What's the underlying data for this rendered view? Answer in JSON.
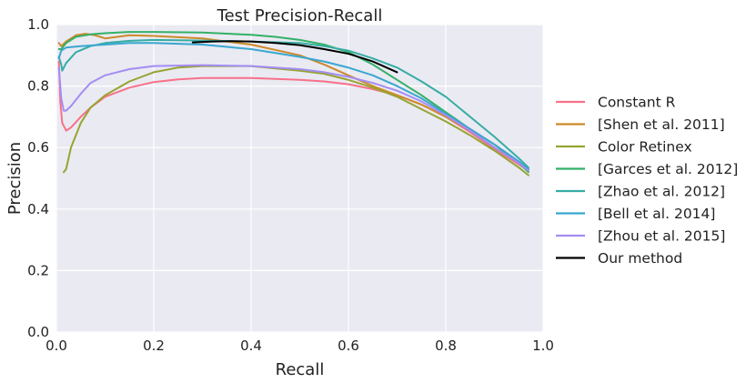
{
  "chart_data": {
    "type": "line",
    "title": "Test Precision-Recall",
    "xlabel": "Recall",
    "ylabel": "Precision",
    "xlim": [
      0.0,
      1.0
    ],
    "ylim": [
      0.0,
      1.0
    ],
    "xticks": [
      0.0,
      0.2,
      0.4,
      0.6,
      0.8,
      1.0
    ],
    "yticks": [
      0.0,
      0.2,
      0.4,
      0.6,
      0.8,
      1.0
    ],
    "tick_format_decimals": 1,
    "grid": true,
    "legend_position": "outside-right",
    "background_color": "#eaeaf2",
    "grid_color": "#ffffff",
    "series": [
      {
        "name": "Constant R",
        "color": "#f77189",
        "points": [
          [
            0.005,
            0.88
          ],
          [
            0.008,
            0.75
          ],
          [
            0.012,
            0.68
          ],
          [
            0.02,
            0.655
          ],
          [
            0.03,
            0.665
          ],
          [
            0.05,
            0.7
          ],
          [
            0.07,
            0.73
          ],
          [
            0.1,
            0.765
          ],
          [
            0.15,
            0.795
          ],
          [
            0.2,
            0.813
          ],
          [
            0.25,
            0.822
          ],
          [
            0.3,
            0.826
          ],
          [
            0.4,
            0.826
          ],
          [
            0.5,
            0.82
          ],
          [
            0.55,
            0.815
          ],
          [
            0.6,
            0.806
          ],
          [
            0.65,
            0.79
          ],
          [
            0.7,
            0.77
          ],
          [
            0.75,
            0.74
          ],
          [
            0.8,
            0.7
          ],
          [
            0.85,
            0.65
          ],
          [
            0.9,
            0.595
          ],
          [
            0.95,
            0.545
          ],
          [
            0.97,
            0.525
          ]
        ]
      },
      {
        "name": "[Shen et al. 2011]",
        "color": "#cc8a2a",
        "points": [
          [
            0.005,
            0.94
          ],
          [
            0.01,
            0.93
          ],
          [
            0.02,
            0.945
          ],
          [
            0.04,
            0.965
          ],
          [
            0.06,
            0.97
          ],
          [
            0.08,
            0.965
          ],
          [
            0.1,
            0.955
          ],
          [
            0.15,
            0.965
          ],
          [
            0.2,
            0.963
          ],
          [
            0.3,
            0.955
          ],
          [
            0.4,
            0.935
          ],
          [
            0.5,
            0.9
          ],
          [
            0.55,
            0.87
          ],
          [
            0.6,
            0.835
          ],
          [
            0.65,
            0.8
          ],
          [
            0.7,
            0.77
          ],
          [
            0.75,
            0.74
          ],
          [
            0.8,
            0.7
          ],
          [
            0.85,
            0.655
          ],
          [
            0.9,
            0.6
          ],
          [
            0.95,
            0.55
          ],
          [
            0.97,
            0.53
          ]
        ]
      },
      {
        "name": "Color Retinex",
        "color": "#97a431",
        "points": [
          [
            0.015,
            0.52
          ],
          [
            0.02,
            0.53
          ],
          [
            0.03,
            0.6
          ],
          [
            0.05,
            0.68
          ],
          [
            0.07,
            0.73
          ],
          [
            0.1,
            0.77
          ],
          [
            0.15,
            0.815
          ],
          [
            0.2,
            0.845
          ],
          [
            0.25,
            0.86
          ],
          [
            0.3,
            0.865
          ],
          [
            0.4,
            0.865
          ],
          [
            0.5,
            0.85
          ],
          [
            0.55,
            0.84
          ],
          [
            0.6,
            0.82
          ],
          [
            0.65,
            0.795
          ],
          [
            0.7,
            0.765
          ],
          [
            0.75,
            0.725
          ],
          [
            0.8,
            0.685
          ],
          [
            0.85,
            0.64
          ],
          [
            0.9,
            0.59
          ],
          [
            0.95,
            0.535
          ],
          [
            0.97,
            0.51
          ]
        ]
      },
      {
        "name": "[Garces et al. 2012]",
        "color": "#32b166",
        "points": [
          [
            0.005,
            0.92
          ],
          [
            0.01,
            0.92
          ],
          [
            0.02,
            0.94
          ],
          [
            0.04,
            0.96
          ],
          [
            0.07,
            0.968
          ],
          [
            0.1,
            0.972
          ],
          [
            0.15,
            0.976
          ],
          [
            0.2,
            0.976
          ],
          [
            0.3,
            0.974
          ],
          [
            0.4,
            0.967
          ],
          [
            0.45,
            0.96
          ],
          [
            0.5,
            0.95
          ],
          [
            0.55,
            0.935
          ],
          [
            0.6,
            0.91
          ],
          [
            0.65,
            0.87
          ],
          [
            0.7,
            0.82
          ],
          [
            0.75,
            0.77
          ],
          [
            0.8,
            0.715
          ],
          [
            0.85,
            0.66
          ],
          [
            0.9,
            0.61
          ],
          [
            0.95,
            0.55
          ],
          [
            0.97,
            0.52
          ]
        ]
      },
      {
        "name": "[Zhao et al. 2012]",
        "color": "#36ada4",
        "points": [
          [
            0.005,
            0.895
          ],
          [
            0.01,
            0.87
          ],
          [
            0.012,
            0.85
          ],
          [
            0.02,
            0.875
          ],
          [
            0.04,
            0.91
          ],
          [
            0.07,
            0.93
          ],
          [
            0.1,
            0.94
          ],
          [
            0.15,
            0.947
          ],
          [
            0.2,
            0.95
          ],
          [
            0.3,
            0.948
          ],
          [
            0.4,
            0.945
          ],
          [
            0.5,
            0.94
          ],
          [
            0.55,
            0.93
          ],
          [
            0.6,
            0.915
          ],
          [
            0.65,
            0.89
          ],
          [
            0.7,
            0.86
          ],
          [
            0.75,
            0.815
          ],
          [
            0.8,
            0.765
          ],
          [
            0.85,
            0.7
          ],
          [
            0.9,
            0.635
          ],
          [
            0.95,
            0.565
          ],
          [
            0.97,
            0.535
          ]
        ]
      },
      {
        "name": "[Bell et al. 2014]",
        "color": "#39a7d0",
        "points": [
          [
            0.005,
            0.89
          ],
          [
            0.01,
            0.915
          ],
          [
            0.02,
            0.925
          ],
          [
            0.05,
            0.93
          ],
          [
            0.1,
            0.935
          ],
          [
            0.15,
            0.94
          ],
          [
            0.2,
            0.94
          ],
          [
            0.3,
            0.935
          ],
          [
            0.4,
            0.92
          ],
          [
            0.5,
            0.895
          ],
          [
            0.55,
            0.88
          ],
          [
            0.6,
            0.86
          ],
          [
            0.65,
            0.835
          ],
          [
            0.7,
            0.8
          ],
          [
            0.75,
            0.76
          ],
          [
            0.8,
            0.71
          ],
          [
            0.85,
            0.66
          ],
          [
            0.9,
            0.61
          ],
          [
            0.95,
            0.555
          ],
          [
            0.97,
            0.53
          ]
        ]
      },
      {
        "name": "[Zhou et al. 2015]",
        "color": "#a48cf4",
        "points": [
          [
            0.005,
            0.86
          ],
          [
            0.01,
            0.76
          ],
          [
            0.015,
            0.72
          ],
          [
            0.02,
            0.72
          ],
          [
            0.03,
            0.735
          ],
          [
            0.05,
            0.775
          ],
          [
            0.07,
            0.81
          ],
          [
            0.1,
            0.835
          ],
          [
            0.15,
            0.855
          ],
          [
            0.2,
            0.865
          ],
          [
            0.3,
            0.868
          ],
          [
            0.4,
            0.865
          ],
          [
            0.5,
            0.855
          ],
          [
            0.55,
            0.845
          ],
          [
            0.6,
            0.83
          ],
          [
            0.65,
            0.81
          ],
          [
            0.7,
            0.785
          ],
          [
            0.75,
            0.75
          ],
          [
            0.8,
            0.705
          ],
          [
            0.85,
            0.655
          ],
          [
            0.9,
            0.6
          ],
          [
            0.95,
            0.55
          ],
          [
            0.97,
            0.525
          ]
        ]
      },
      {
        "name": "Our method",
        "color": "#000000",
        "points": [
          [
            0.28,
            0.942
          ],
          [
            0.32,
            0.945
          ],
          [
            0.36,
            0.946
          ],
          [
            0.4,
            0.945
          ],
          [
            0.45,
            0.94
          ],
          [
            0.5,
            0.933
          ],
          [
            0.55,
            0.92
          ],
          [
            0.6,
            0.905
          ],
          [
            0.65,
            0.88
          ],
          [
            0.7,
            0.845
          ]
        ]
      }
    ]
  }
}
